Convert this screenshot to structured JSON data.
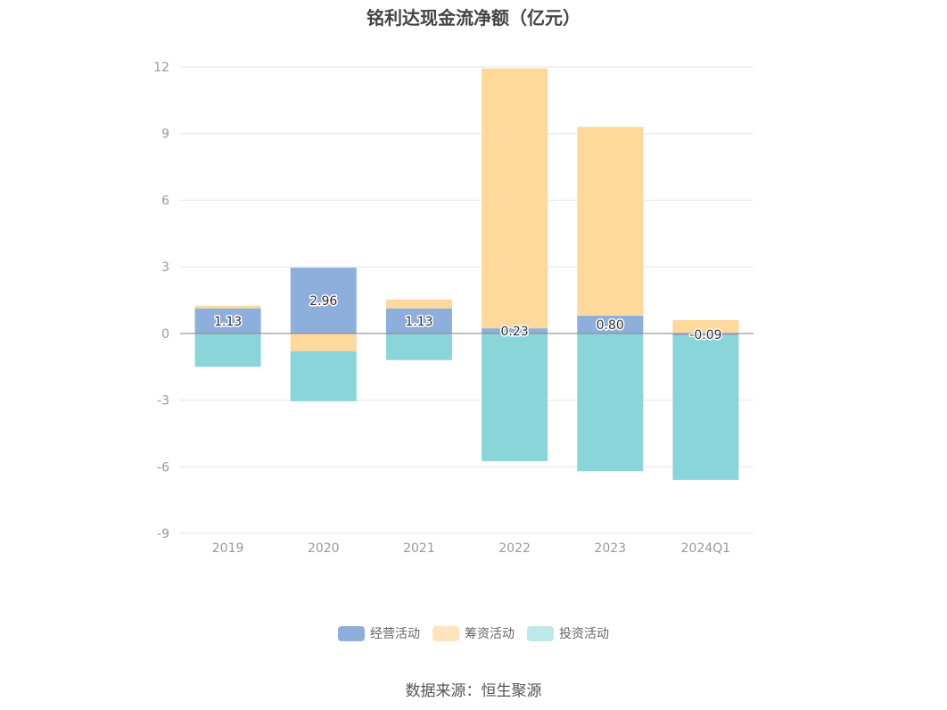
{
  "title": "铭利达现金流净额（亿元）",
  "source": "数据来源：恒生聚源",
  "chart_data": {
    "type": "bar",
    "stacked": true,
    "categories": [
      "2019",
      "2020",
      "2021",
      "2022",
      "2023",
      "2024Q1"
    ],
    "ylim": [
      -9,
      12
    ],
    "yticks": [
      -9,
      -6,
      -3,
      0,
      3,
      6,
      9,
      12
    ],
    "grid": true,
    "legend_position": "bottom",
    "series": [
      {
        "name": "经营活动",
        "color": "#8eaedc",
        "values": [
          1.13,
          2.96,
          1.13,
          0.23,
          0.8,
          -0.09
        ],
        "labels": [
          "1.13",
          "2.96",
          "1.13",
          "0.23",
          "0.80",
          "-0.09"
        ]
      },
      {
        "name": "筹资活动",
        "color": "#ffd89c",
        "values": [
          0.12,
          -0.8,
          0.4,
          11.7,
          8.5,
          0.6
        ]
      },
      {
        "name": "投资活动",
        "color": "#89d5d9",
        "values": [
          -1.5,
          -2.25,
          -1.2,
          -5.75,
          -6.2,
          -6.5
        ]
      }
    ]
  }
}
